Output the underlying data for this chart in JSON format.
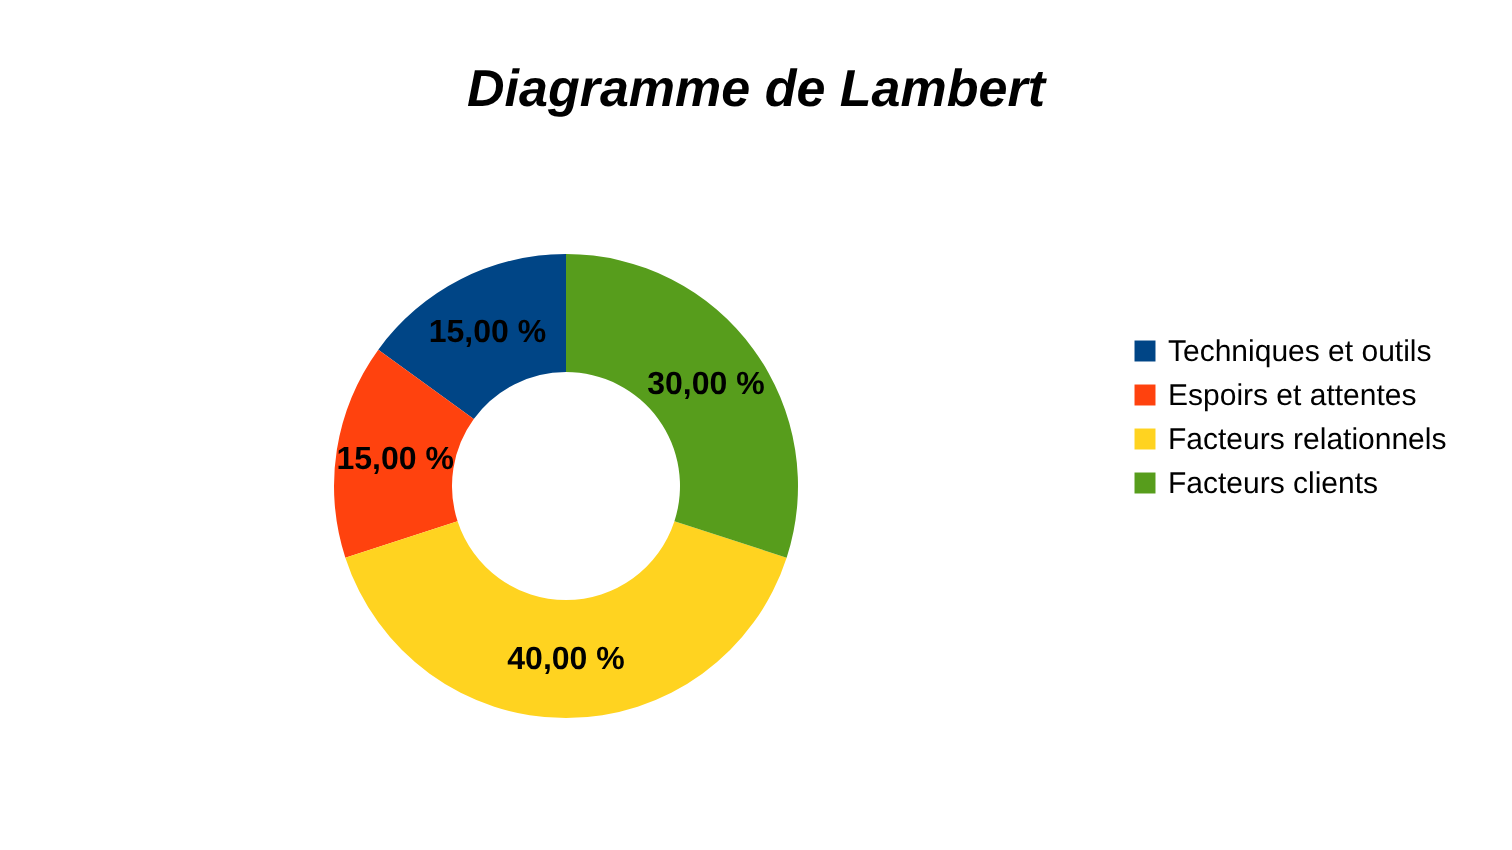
{
  "chart_data": {
    "type": "donut",
    "title": "Diagramme de Lambert",
    "categories": [
      "Techniques et outils",
      "Espoirs et attentes",
      "Facteurs relationnels",
      "Facteurs clients"
    ],
    "values": [
      15,
      15,
      40,
      30
    ],
    "colors": [
      "#004586",
      "#ff420e",
      "#ffd320",
      "#579d1c"
    ],
    "value_labels": [
      "15,00 %",
      "15,00 %",
      "40,00 %",
      "30,00 %"
    ],
    "legend": "right"
  }
}
